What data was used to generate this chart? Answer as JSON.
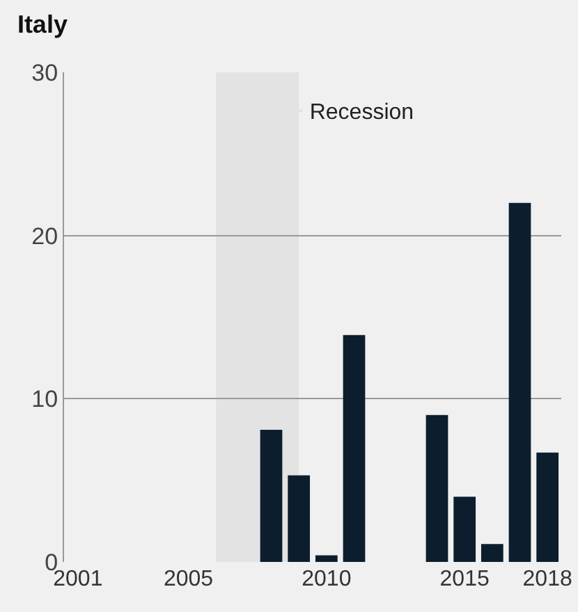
{
  "chart_data": {
    "type": "bar",
    "title": "Italy",
    "x": [
      2008,
      2009,
      2010,
      2011,
      2014,
      2015,
      2016,
      2017,
      2018
    ],
    "values": [
      8.1,
      5.3,
      0.4,
      13.9,
      9.0,
      4.0,
      1.1,
      22.0,
      6.7
    ],
    "color": "#0c1e2e",
    "xlim": [
      2000.5,
      2018.5
    ],
    "xticks": [
      2001,
      2005,
      2010,
      2015,
      2018
    ],
    "ylim": [
      0,
      30
    ],
    "yticks": [
      0,
      10,
      20,
      30
    ],
    "grid": "y",
    "legend": "top",
    "bands": [
      {
        "axis": "x",
        "from": 2006,
        "to": 2009,
        "label": "Recession",
        "color": "#e3e3e3"
      }
    ]
  }
}
